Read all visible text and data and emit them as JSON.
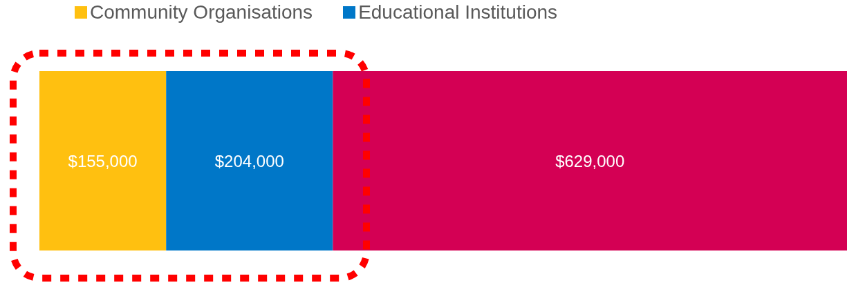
{
  "chart_data": {
    "type": "bar",
    "orientation": "horizontal",
    "stacked": true,
    "categories": [
      null
    ],
    "legend": "top",
    "series": [
      {
        "name": "Community Organisations",
        "color": "#ffc010",
        "values": [
          155000
        ],
        "value_labels": [
          "$155,000"
        ]
      },
      {
        "name": "Educational Institutions",
        "color": "#0077c8",
        "values": [
          204000
        ],
        "value_labels": [
          "$204,000"
        ]
      },
      {
        "color": "#d40054",
        "values": [
          629000
        ],
        "value_labels": [
          "$629,000"
        ]
      }
    ]
  }
}
